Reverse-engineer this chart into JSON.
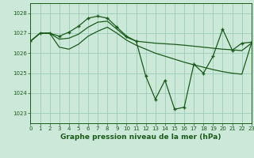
{
  "title": "Graphe pression niveau de la mer (hPa)",
  "bg_color": "#cce8d8",
  "grid_color": "#99ccbb",
  "line_color": "#1a5c1a",
  "xlim": [
    0,
    23
  ],
  "ylim": [
    1022.5,
    1028.5
  ],
  "yticks": [
    1023,
    1024,
    1025,
    1026,
    1027,
    1028
  ],
  "xticks": [
    0,
    1,
    2,
    3,
    4,
    5,
    6,
    7,
    8,
    9,
    10,
    11,
    12,
    13,
    14,
    15,
    16,
    17,
    18,
    19,
    20,
    21,
    22,
    23
  ],
  "series_main": {
    "x": [
      0,
      1,
      2,
      3,
      4,
      5,
      6,
      7,
      8,
      9,
      10,
      11,
      12,
      13,
      14,
      15,
      16,
      17,
      18,
      19,
      20,
      21,
      22,
      23
    ],
    "y": [
      1026.6,
      1027.0,
      1027.0,
      1026.85,
      1027.05,
      1027.35,
      1027.75,
      1027.85,
      1027.75,
      1027.3,
      1026.85,
      1026.6,
      1024.85,
      1023.7,
      1024.65,
      1023.2,
      1023.3,
      1025.45,
      1025.0,
      1025.85,
      1027.2,
      1026.15,
      1026.5,
      1026.55
    ]
  },
  "series_s1": {
    "x": [
      0,
      1,
      2,
      3,
      4,
      5,
      6,
      7,
      8,
      9,
      10,
      11,
      12,
      13,
      14,
      15,
      16,
      17,
      18,
      19,
      20,
      21,
      22,
      23
    ],
    "y": [
      1026.6,
      1027.0,
      1027.0,
      1026.7,
      1026.75,
      1026.95,
      1027.3,
      1027.55,
      1027.6,
      1027.2,
      1026.8,
      1026.6,
      1026.55,
      1026.5,
      1026.47,
      1026.44,
      1026.4,
      1026.35,
      1026.3,
      1026.25,
      1026.2,
      1026.17,
      1026.13,
      1026.5
    ]
  },
  "series_s2": {
    "x": [
      0,
      1,
      2,
      3,
      4,
      5,
      6,
      7,
      8,
      9,
      10,
      11,
      12,
      13,
      14,
      15,
      16,
      17,
      18,
      19,
      20,
      21,
      22,
      23
    ],
    "y": [
      1026.6,
      1027.0,
      1027.0,
      1026.3,
      1026.2,
      1026.45,
      1026.85,
      1027.1,
      1027.3,
      1027.0,
      1026.65,
      1026.4,
      1026.2,
      1026.0,
      1025.85,
      1025.7,
      1025.55,
      1025.42,
      1025.3,
      1025.18,
      1025.08,
      1025.0,
      1024.95,
      1026.5
    ]
  }
}
